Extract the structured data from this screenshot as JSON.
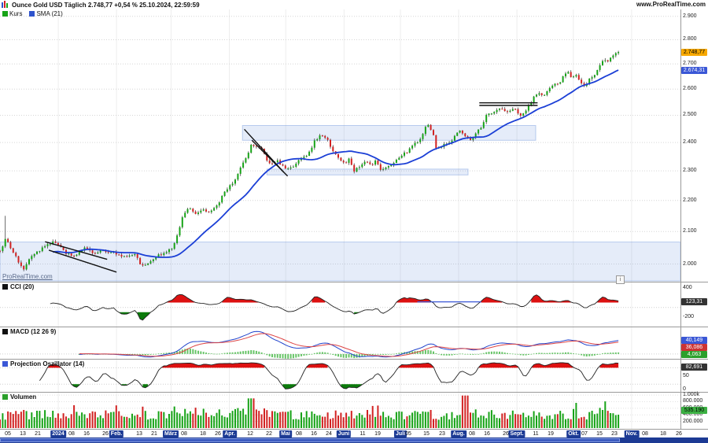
{
  "window": {
    "title": "Ounce Gold USD Täglich 2.748,77 +0,54 % 25.10.2024, 22:59:59",
    "url": "www.ProRealTime.com",
    "watermark": "ProRealTime.com",
    "info_icon": "i"
  },
  "legend": {
    "price_label": "Kurs",
    "price_color": "#17a317",
    "sma_label": "SMA (21)",
    "sma_color": "#2e53cc"
  },
  "price_axis": {
    "ticks": [
      {
        "label": "2.900",
        "v": 2900
      },
      {
        "label": "2.800",
        "v": 2800
      },
      {
        "label": "2.700",
        "v": 2700
      },
      {
        "label": "2.600",
        "v": 2600
      },
      {
        "label": "2.500",
        "v": 2500
      },
      {
        "label": "2.400",
        "v": 2400
      },
      {
        "label": "2.300",
        "v": 2300
      },
      {
        "label": "2.200",
        "v": 2200
      },
      {
        "label": "2.100",
        "v": 2100
      },
      {
        "label": "2.000",
        "v": 2000
      }
    ],
    "last_badge": {
      "label": "2.748,77",
      "v": 2748.77,
      "bg": "#f7a800",
      "fg": "#000"
    },
    "sma_badge": {
      "label": "2.674,31",
      "v": 2674.31,
      "bg": "#3a57d6",
      "fg": "#fff"
    }
  },
  "chart_data": {
    "type": "candlestick",
    "instrument": "Ounce Gold USD",
    "timeframe": "Täglich",
    "last_price": 2748.77,
    "change": "+0,54 %",
    "as_of": "25.10.2024, 22:59:59",
    "scale": "logarithmic",
    "sma_period": 21,
    "days_total": 329,
    "axis_days": 362,
    "candles": 235,
    "price_range": [
      1950,
      2930
    ],
    "anchors": [
      [
        0,
        2040
      ],
      [
        3,
        2075
      ],
      [
        8,
        2028
      ],
      [
        12,
        1982
      ],
      [
        18,
        2032
      ],
      [
        24,
        2052
      ],
      [
        27,
        2066
      ],
      [
        31,
        2062
      ],
      [
        35,
        2030
      ],
      [
        40,
        2028
      ],
      [
        45,
        2048
      ],
      [
        50,
        2032
      ],
      [
        55,
        2042
      ],
      [
        60,
        2035
      ],
      [
        66,
        2024
      ],
      [
        72,
        2032
      ],
      [
        75,
        1995
      ],
      [
        79,
        2004
      ],
      [
        83,
        2024
      ],
      [
        88,
        2035
      ],
      [
        91,
        2045
      ],
      [
        94,
        2082
      ],
      [
        97,
        2142
      ],
      [
        100,
        2178
      ],
      [
        104,
        2160
      ],
      [
        108,
        2172
      ],
      [
        112,
        2162
      ],
      [
        116,
        2188
      ],
      [
        120,
        2232
      ],
      [
        124,
        2258
      ],
      [
        127,
        2300
      ],
      [
        130,
        2340
      ],
      [
        133,
        2372
      ],
      [
        134,
        2401
      ],
      [
        136,
        2383
      ],
      [
        139,
        2378
      ],
      [
        142,
        2335
      ],
      [
        144,
        2322
      ],
      [
        147,
        2338
      ],
      [
        150,
        2316
      ],
      [
        153,
        2304
      ],
      [
        156,
        2318
      ],
      [
        160,
        2347
      ],
      [
        164,
        2360
      ],
      [
        168,
        2412
      ],
      [
        171,
        2425
      ],
      [
        174,
        2414
      ],
      [
        176,
        2380
      ],
      [
        179,
        2352
      ],
      [
        183,
        2327
      ],
      [
        186,
        2340
      ],
      [
        188,
        2300
      ],
      [
        191,
        2312
      ],
      [
        194,
        2332
      ],
      [
        197,
        2320
      ],
      [
        200,
        2334
      ],
      [
        203,
        2302
      ],
      [
        206,
        2318
      ],
      [
        209,
        2327
      ],
      [
        213,
        2352
      ],
      [
        217,
        2368
      ],
      [
        221,
        2398
      ],
      [
        224,
        2412
      ],
      [
        227,
        2468
      ],
      [
        230,
        2440
      ],
      [
        232,
        2378
      ],
      [
        235,
        2388
      ],
      [
        238,
        2398
      ],
      [
        241,
        2410
      ],
      [
        244,
        2446
      ],
      [
        247,
        2420
      ],
      [
        250,
        2412
      ],
      [
        253,
        2432
      ],
      [
        256,
        2458
      ],
      [
        259,
        2506
      ],
      [
        262,
        2512
      ],
      [
        265,
        2528
      ],
      [
        268,
        2518
      ],
      [
        271,
        2512
      ],
      [
        274,
        2524
      ],
      [
        277,
        2498
      ],
      [
        280,
        2516
      ],
      [
        283,
        2558
      ],
      [
        286,
        2582
      ],
      [
        289,
        2572
      ],
      [
        292,
        2598
      ],
      [
        295,
        2622
      ],
      [
        298,
        2628
      ],
      [
        300,
        2656
      ],
      [
        302,
        2672
      ],
      [
        304,
        2640
      ],
      [
        306,
        2658
      ],
      [
        309,
        2622
      ],
      [
        311,
        2608
      ],
      [
        313,
        2632
      ],
      [
        315,
        2648
      ],
      [
        317,
        2662
      ],
      [
        319,
        2688
      ],
      [
        321,
        2718
      ],
      [
        323,
        2712
      ],
      [
        325,
        2726
      ],
      [
        327,
        2736
      ],
      [
        329,
        2749
      ]
    ],
    "zones": [
      {
        "d1": 0,
        "d2": 362,
        "p1": 1950,
        "p2": 2067
      },
      {
        "d1": 129,
        "d2": 285,
        "p1": 2408,
        "p2": 2462
      },
      {
        "d1": 142,
        "d2": 249,
        "p1": 2286,
        "p2": 2306
      }
    ],
    "trendlines": [
      {
        "d1": 24,
        "p1": 2068,
        "d2": 57,
        "p2": 2014
      },
      {
        "d1": 26,
        "p1": 2042,
        "d2": 62,
        "p2": 1976
      },
      {
        "d1": 130,
        "p1": 2448,
        "d2": 151,
        "p2": 2295
      },
      {
        "d1": 134,
        "p1": 2408,
        "d2": 153,
        "p2": 2282
      },
      {
        "d1": 255,
        "p1": 2547,
        "d2": 286,
        "p2": 2547
      },
      {
        "d1": 255,
        "p1": 2537,
        "d2": 286,
        "p2": 2537
      }
    ]
  },
  "indicators": {
    "cci": {
      "label": "CCI (20)",
      "square": "#111",
      "period": 20,
      "value": 123.31,
      "badge": {
        "label": "123,31",
        "bg": "#333",
        "fg": "#fff"
      },
      "ticks": [
        {
          "label": "400",
          "v": 400
        },
        {
          "label": "-200",
          "v": -200
        }
      ],
      "range": [
        -380,
        500
      ],
      "upper": 100,
      "lower": -100,
      "blue_line": {
        "d1": 222,
        "d2": 256,
        "v": 115
      }
    },
    "macd": {
      "label": "MACD (12 26 9)",
      "square": "#111",
      "badges": [
        {
          "label": "40,149",
          "v": 40.149,
          "bg": "#3a57d6",
          "fg": "#fff"
        },
        {
          "label": "36,086",
          "v": 36.086,
          "bg": "#cc3333",
          "fg": "#fff"
        },
        {
          "label": "4,063",
          "v": 4.063,
          "bg": "#2ca02c",
          "fg": "#fff"
        }
      ]
    },
    "projection": {
      "label": "Projection Oszillator (14)",
      "square": "#3a57d6",
      "period": 14,
      "value": 82.691,
      "badge": {
        "label": "82,691",
        "bg": "#333",
        "fg": "#fff"
      },
      "ticks": [
        {
          "label": "50",
          "v": 50
        },
        {
          "label": "0",
          "v": 0
        }
      ],
      "range": [
        -5,
        107
      ],
      "upper": 80,
      "lower": 20
    },
    "volume": {
      "label": "Volumen",
      "square": "#2ca02c",
      "badge": {
        "label": "535.190",
        "v": 535190,
        "bg": "#3cb043",
        "fg": "#000"
      },
      "ticks": [
        {
          "label": "1.000k",
          "v": 1000000
        },
        {
          "label": "800.000",
          "v": 800000
        },
        {
          "label": "600.000",
          "v": 600000
        },
        {
          "label": "400.000",
          "v": 400000
        },
        {
          "label": "200.000",
          "v": 200000
        }
      ],
      "max": 1050000
    }
  },
  "x_axis": {
    "labels": [
      {
        "t": "05",
        "d": 4
      },
      {
        "t": "13",
        "d": 12
      },
      {
        "t": "21",
        "d": 20
      },
      {
        "t": "2024",
        "d": 31,
        "m": 1
      },
      {
        "t": "08",
        "d": 38
      },
      {
        "t": "16",
        "d": 46
      },
      {
        "t": "26",
        "d": 56
      },
      {
        "t": "Feb.",
        "d": 62,
        "m": 1
      },
      {
        "t": "13",
        "d": 74
      },
      {
        "t": "21",
        "d": 82
      },
      {
        "t": "März",
        "d": 91,
        "m": 1
      },
      {
        "t": "08",
        "d": 98
      },
      {
        "t": "18",
        "d": 108
      },
      {
        "t": "26",
        "d": 116
      },
      {
        "t": "Apr.",
        "d": 122,
        "m": 1
      },
      {
        "t": "12",
        "d": 133
      },
      {
        "t": "22",
        "d": 143
      },
      {
        "t": "Mai",
        "d": 152,
        "m": 1
      },
      {
        "t": "08",
        "d": 159
      },
      {
        "t": "16",
        "d": 167
      },
      {
        "t": "24",
        "d": 175
      },
      {
        "t": "Juni",
        "d": 183,
        "m": 1
      },
      {
        "t": "11",
        "d": 193
      },
      {
        "t": "19",
        "d": 201
      },
      {
        "t": "Juli",
        "d": 213,
        "m": 1
      },
      {
        "t": "05",
        "d": 217
      },
      {
        "t": "15",
        "d": 227
      },
      {
        "t": "23",
        "d": 235
      },
      {
        "t": "Aug.",
        "d": 244,
        "m": 1
      },
      {
        "t": "08",
        "d": 251
      },
      {
        "t": "16",
        "d": 259
      },
      {
        "t": "26",
        "d": 269
      },
      {
        "t": "Sept.",
        "d": 275,
        "m": 1
      },
      {
        "t": "11",
        "d": 285
      },
      {
        "t": "19",
        "d": 293
      },
      {
        "t": "Okt.",
        "d": 305,
        "m": 1
      },
      {
        "t": "07",
        "d": 311
      },
      {
        "t": "15",
        "d": 319
      },
      {
        "t": "23",
        "d": 327
      },
      {
        "t": "Nov.",
        "d": 336,
        "m": 1
      },
      {
        "t": "08",
        "d": 343
      },
      {
        "t": "18",
        "d": 353
      },
      {
        "t": "26",
        "d": 361
      }
    ],
    "month_grid_days": [
      31,
      62,
      91,
      122,
      152,
      183,
      213,
      244,
      275,
      305,
      336
    ]
  },
  "colors": {
    "up": "#17a317",
    "down": "#d22222",
    "wick": "#444",
    "sma": "#1b3fd6",
    "zone_fill": "rgba(110,150,220,0.18)",
    "zone_stroke": "rgba(110,150,220,0.45)",
    "grid": "#d6d6d6",
    "panel_line": "#9a9a9a",
    "hist": "#66c466",
    "macd_line": "#2244cc",
    "signal_line": "#dd4444",
    "osc_line": "#222",
    "fill_hi": "#dd1111",
    "fill_lo": "#0b7a0b",
    "scrollbar": "#1c3a94",
    "month_bg": "#1c3a94"
  }
}
